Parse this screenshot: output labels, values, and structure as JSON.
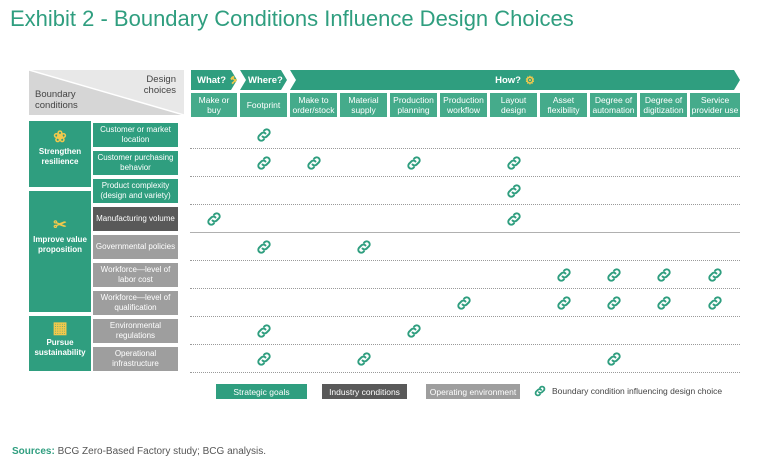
{
  "title": "Exhibit 2 - Boundary Conditions Influence Design Choices",
  "corner": {
    "design_choices": "Design choices",
    "boundary_conditions": "Boundary conditions"
  },
  "banners": {
    "what": "What?",
    "where": "Where?",
    "how": "How?"
  },
  "columns": [
    "Make or buy",
    "Footprint",
    "Make to order/stock",
    "Material supply",
    "Production planning",
    "Production workflow",
    "Layout design",
    "Asset flexibility",
    "Degree of automation",
    "Degree of digitization",
    "Service provider use"
  ],
  "goals": [
    {
      "label": "Strengthen resilience",
      "icon": "globe-icon"
    },
    {
      "label": "Improve value proposition",
      "icon": "scissors-icon"
    },
    {
      "label": "Pursue sustainability",
      "icon": "solar-panel-icon"
    }
  ],
  "rows": [
    {
      "label": "Customer or market location",
      "type": "strategic",
      "links": [
        1
      ]
    },
    {
      "label": "Customer purchasing behavior",
      "type": "strategic",
      "links": [
        1,
        2,
        4,
        6
      ]
    },
    {
      "label": "Product complexity (design and variety)",
      "type": "strategic",
      "links": [
        6
      ]
    },
    {
      "label": "Manufacturing volume",
      "type": "industry",
      "links": [
        0,
        6
      ]
    },
    {
      "label": "Governmental policies",
      "type": "operating",
      "links": [
        1,
        3
      ]
    },
    {
      "label": "Workforce—level of labor cost",
      "type": "operating",
      "links": [
        7,
        8,
        9,
        10
      ]
    },
    {
      "label": "Workforce—level of qualification",
      "type": "operating",
      "links": [
        5,
        7,
        8,
        9,
        10
      ]
    },
    {
      "label": "Environmental regulations",
      "type": "operating",
      "links": [
        1,
        4
      ]
    },
    {
      "label": "Operational infrastructure",
      "type": "operating",
      "links": [
        1,
        3,
        8
      ]
    }
  ],
  "legend": {
    "strategic": "Strategic goals",
    "industry": "Industry conditions",
    "operating": "Operating environment",
    "link": "Boundary condition influencing design choice"
  },
  "colors": {
    "strategic": "#2f9e7f",
    "industry": "#595959",
    "operating": "#9e9e9e",
    "link": "#2f9e7f"
  },
  "sources": {
    "label": "Sources:",
    "text": "BCG Zero-Based Factory study; BCG analysis."
  }
}
